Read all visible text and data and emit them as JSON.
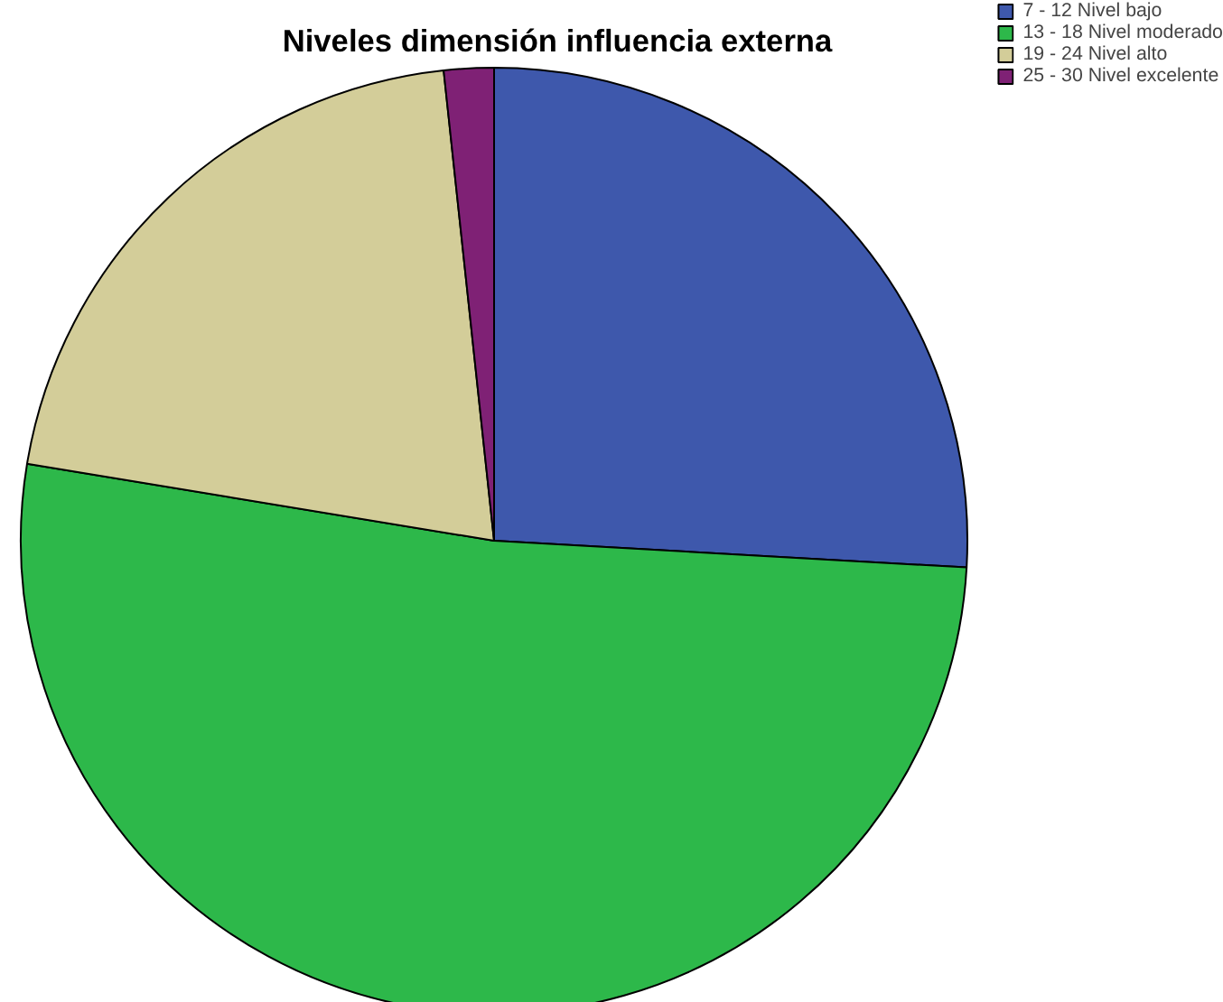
{
  "chart_data": {
    "type": "pie",
    "title": "Niveles dimensión influencia externa",
    "categories": [
      "7 - 12 Nivel bajo",
      "13 - 18 Nivel moderado",
      "19 - 24 Nivel alto",
      "25 - 30 Nivel excelente"
    ],
    "values": [
      25.9,
      51.7,
      20.7,
      1.7
    ],
    "colors": [
      "#3e58ac",
      "#2db84a",
      "#d3cd99",
      "#7f2175"
    ],
    "legend": "top right"
  }
}
